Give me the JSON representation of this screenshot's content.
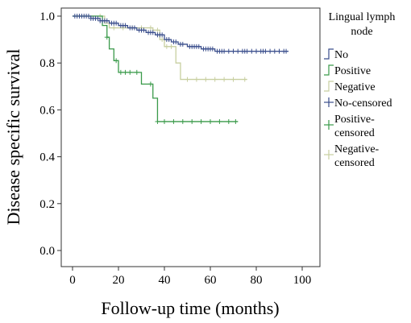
{
  "chart_data": {
    "type": "line",
    "xlabel": "Follow-up time (months)",
    "ylabel": "Disease specific survival",
    "xlim": [
      0,
      100
    ],
    "ylim": [
      0.0,
      1.0
    ],
    "x_ticks": [
      {
        "value": 0,
        "label": "0"
      },
      {
        "value": 20,
        "label": "20"
      },
      {
        "value": 40,
        "label": "40"
      },
      {
        "value": 60,
        "label": "60"
      },
      {
        "value": 80,
        "label": "80"
      },
      {
        "value": 100,
        "label": "100"
      }
    ],
    "y_ticks": [
      {
        "value": 0.0,
        "label": "0.0"
      },
      {
        "value": 0.2,
        "label": "0.2"
      },
      {
        "value": 0.4,
        "label": "0.4"
      },
      {
        "value": 0.6,
        "label": "0.6"
      },
      {
        "value": 0.8,
        "label": "0.8"
      },
      {
        "value": 1.0,
        "label": "1.0"
      }
    ],
    "grid": false,
    "legend_position": "right",
    "legend_title": [
      "Lingual lymph",
      "node"
    ],
    "series": [
      {
        "name": "No",
        "color": "#3a4e8c",
        "censor_label": [
          "No-censored"
        ],
        "steps": [
          [
            0,
            1.0
          ],
          [
            8,
            0.99
          ],
          [
            12,
            0.98
          ],
          [
            16,
            0.97
          ],
          [
            20,
            0.96
          ],
          [
            24,
            0.95
          ],
          [
            28,
            0.94
          ],
          [
            32,
            0.93
          ],
          [
            36,
            0.92
          ],
          [
            40,
            0.9
          ],
          [
            43,
            0.89
          ],
          [
            46,
            0.88
          ],
          [
            50,
            0.87
          ],
          [
            56,
            0.86
          ],
          [
            62,
            0.85
          ]
        ],
        "end_x": 94,
        "censored": [
          1,
          2,
          3,
          4,
          5,
          6,
          7,
          8,
          9,
          10,
          11,
          12,
          13,
          14,
          15,
          17,
          18,
          19,
          21,
          22,
          23,
          25,
          26,
          27,
          29,
          30,
          31,
          33,
          34,
          35,
          37,
          38,
          39,
          41,
          42,
          44,
          45,
          47,
          48,
          51,
          52,
          53,
          54,
          55,
          57,
          58,
          59,
          60,
          61,
          63,
          64,
          65,
          66,
          68,
          70,
          72,
          74,
          75,
          76,
          78,
          80,
          82,
          83,
          84,
          86,
          88,
          90,
          92,
          93
        ]
      },
      {
        "name": "Positive",
        "color": "#3a9a4a",
        "censor_label": [
          "Positive-",
          "censored"
        ],
        "steps": [
          [
            0,
            1.0
          ],
          [
            13,
            0.96
          ],
          [
            15,
            0.91
          ],
          [
            16,
            0.86
          ],
          [
            18,
            0.81
          ],
          [
            20,
            0.76
          ],
          [
            30,
            0.71
          ],
          [
            35,
            0.65
          ],
          [
            37,
            0.55
          ]
        ],
        "end_x": 72,
        "censored": [
          15,
          19,
          21,
          23,
          25,
          28,
          34,
          37,
          40,
          44,
          48,
          52,
          56,
          60,
          64,
          68,
          71
        ]
      },
      {
        "name": "Negative",
        "color": "#c8cfa0",
        "censor_label": [
          "Negative-",
          "censored"
        ],
        "steps": [
          [
            0,
            1.0
          ],
          [
            14,
            0.97
          ],
          [
            16,
            0.95
          ],
          [
            35,
            0.94
          ],
          [
            38,
            0.9
          ],
          [
            40,
            0.87
          ],
          [
            45,
            0.8
          ],
          [
            47,
            0.73
          ]
        ],
        "end_x": 76,
        "censored": [
          12,
          18,
          22,
          26,
          30,
          34,
          37,
          39,
          41,
          43,
          50,
          54,
          58,
          62,
          66,
          70,
          75
        ]
      }
    ]
  }
}
